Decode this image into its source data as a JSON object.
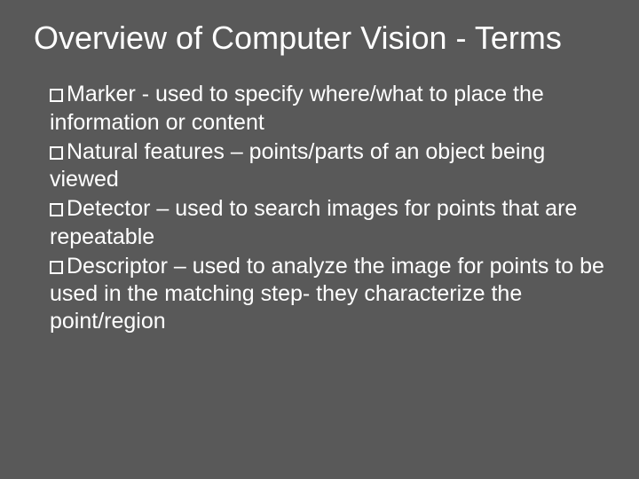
{
  "slide": {
    "background_color": "#595959",
    "text_color": "#ffffff",
    "title_fontsize": 36,
    "body_fontsize": 25,
    "title": "Overview of Computer Vision - Terms",
    "bullets": [
      "Marker  - used to specify where/what to place the information or content",
      "Natural features – points/parts of an object being viewed",
      "Detector – used to search images for points that are repeatable",
      "Descriptor – used to analyze the image for points to be used in the matching step- they characterize the point/region"
    ]
  }
}
